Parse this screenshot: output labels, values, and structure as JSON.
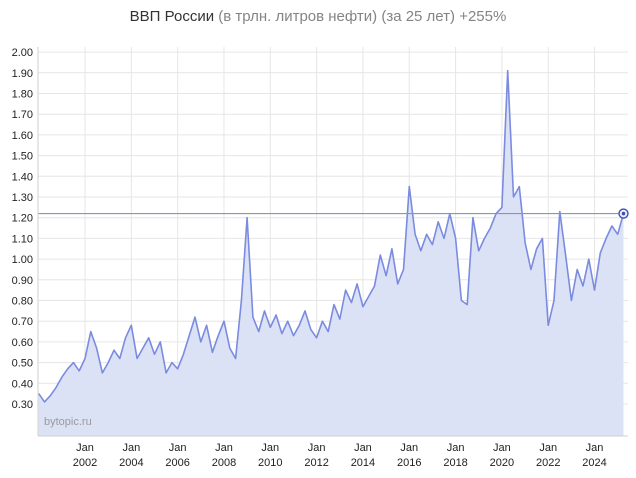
{
  "title": {
    "main": "ВВП России",
    "subtitle": "(в трлн. литров нефти) (за 25 лет) +255%"
  },
  "watermark": "bytopic.ru",
  "chart_data": {
    "type": "area",
    "title": "ВВП России (в трлн. литров нефти) (за 25 лет) +255%",
    "xlabel": "",
    "ylabel": "",
    "ylim": [
      0.3,
      2.0
    ],
    "xlim": [
      2000.0,
      2025.4
    ],
    "grid": true,
    "legend": "none",
    "yticks": [
      2.0,
      1.9,
      1.8,
      1.7,
      1.6,
      1.5,
      1.4,
      1.3,
      1.2,
      1.1,
      1.0,
      0.9,
      0.8,
      0.7,
      0.6,
      0.5,
      0.4,
      0.3
    ],
    "xtick_month": "Jan",
    "xtick_years": [
      2002,
      2004,
      2006,
      2008,
      2010,
      2012,
      2014,
      2016,
      2018,
      2020,
      2022,
      2024
    ],
    "reference_line": 1.22,
    "last_value": 1.22,
    "start_year": 2000.0,
    "step_years": 0.25,
    "values": [
      0.35,
      0.31,
      0.34,
      0.38,
      0.43,
      0.47,
      0.5,
      0.46,
      0.52,
      0.65,
      0.57,
      0.45,
      0.5,
      0.56,
      0.52,
      0.62,
      0.68,
      0.52,
      0.57,
      0.62,
      0.54,
      0.6,
      0.45,
      0.5,
      0.47,
      0.54,
      0.63,
      0.72,
      0.6,
      0.68,
      0.55,
      0.63,
      0.7,
      0.57,
      0.52,
      0.8,
      1.2,
      0.72,
      0.65,
      0.75,
      0.67,
      0.73,
      0.64,
      0.7,
      0.63,
      0.68,
      0.75,
      0.66,
      0.62,
      0.7,
      0.65,
      0.78,
      0.71,
      0.85,
      0.79,
      0.88,
      0.77,
      0.82,
      0.87,
      1.02,
      0.92,
      1.05,
      0.88,
      0.95,
      1.35,
      1.12,
      1.04,
      1.12,
      1.07,
      1.18,
      1.1,
      1.22,
      1.1,
      0.8,
      0.78,
      1.2,
      1.04,
      1.1,
      1.15,
      1.22,
      1.25,
      1.91,
      1.3,
      1.35,
      1.08,
      0.95,
      1.05,
      1.1,
      0.68,
      0.8,
      1.23,
      1.02,
      0.8,
      0.95,
      0.87,
      1.0,
      0.85,
      1.03,
      1.1,
      1.16,
      1.12,
      1.22
    ],
    "colors": {
      "line": "#7b8be0",
      "fill": "#dce2f6",
      "reference": "#7e9ab8",
      "grid": "#e6e6e6",
      "axis": "#cfcfcf",
      "tick_text": "#222222",
      "marker": "#3f4fae"
    }
  }
}
